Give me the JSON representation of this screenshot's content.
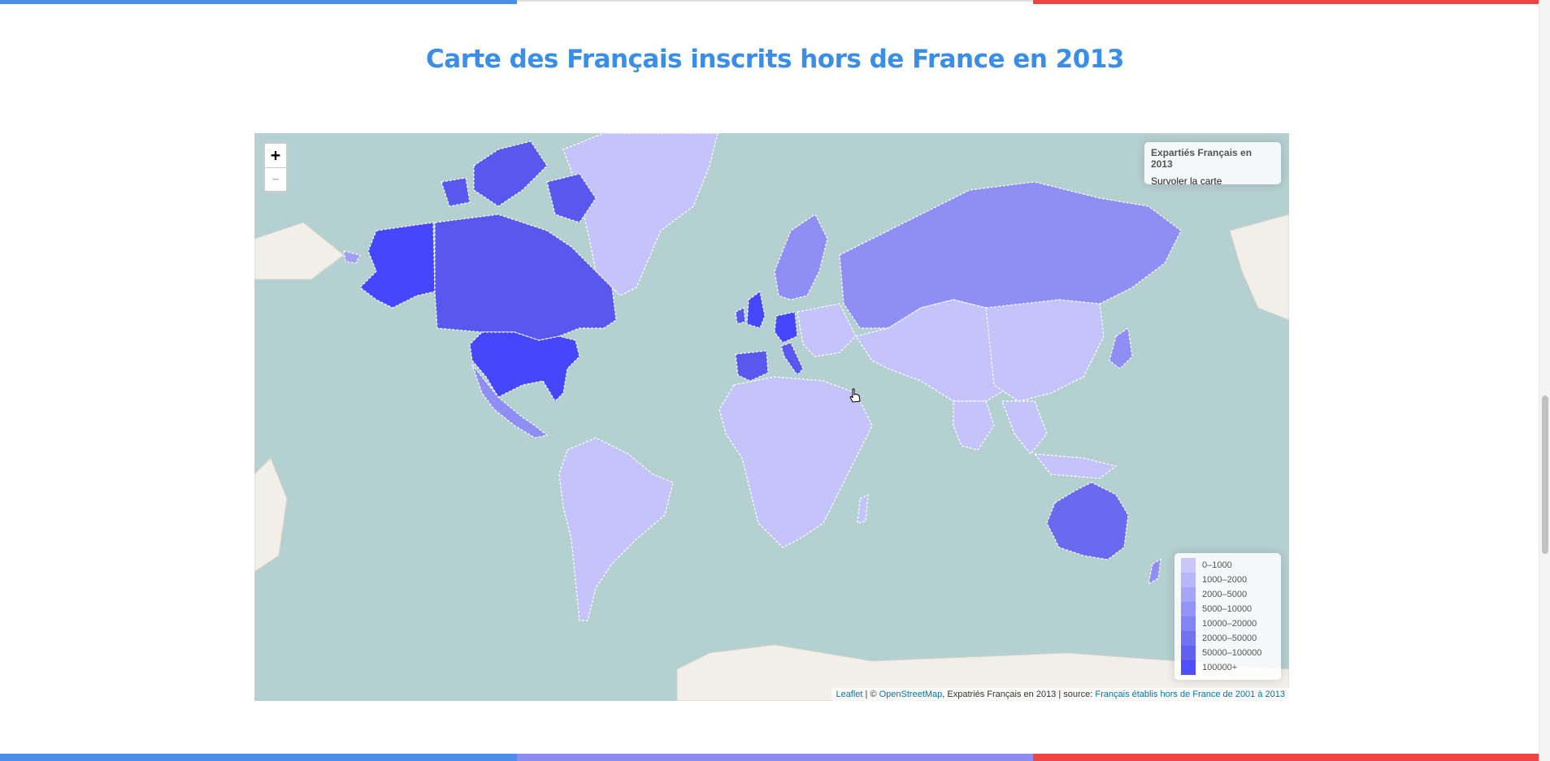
{
  "page_title": "Carte des Français inscrits hors de France en 2013",
  "colors": {
    "blue_band": "#4a8fe7",
    "mid_band": "#d8d8d8",
    "red_band": "#ee4444",
    "title": "#3a8ee6",
    "ocean": "#b5d0d0",
    "land": "#f2efe9"
  },
  "zoom_control": {
    "zoom_in": "+",
    "zoom_out": "−"
  },
  "info_box": {
    "title": "Expartiés Français en 2013",
    "hint": "Survoler la carte"
  },
  "legend": {
    "items": [
      {
        "label": "0–1000",
        "color": "#c4c4fa"
      },
      {
        "label": "1000–2000",
        "color": "#b2b2f8"
      },
      {
        "label": "2000–5000",
        "color": "#a0a0f6"
      },
      {
        "label": "5000–10000",
        "color": "#8e8ef5"
      },
      {
        "label": "10000–20000",
        "color": "#7c7cf3"
      },
      {
        "label": "20000–50000",
        "color": "#6a6af0"
      },
      {
        "label": "50000–100000",
        "color": "#5858ee"
      },
      {
        "label": "100000+",
        "color": "#4646fc"
      }
    ]
  },
  "attribution": {
    "leaflet": "Leaflet",
    "sep1": " | © ",
    "osm": "OpenStreetMap",
    "mid": ", Expatriés Français en 2013 | source: ",
    "source": "Français établis hors de France de 2001 à 2013"
  }
}
